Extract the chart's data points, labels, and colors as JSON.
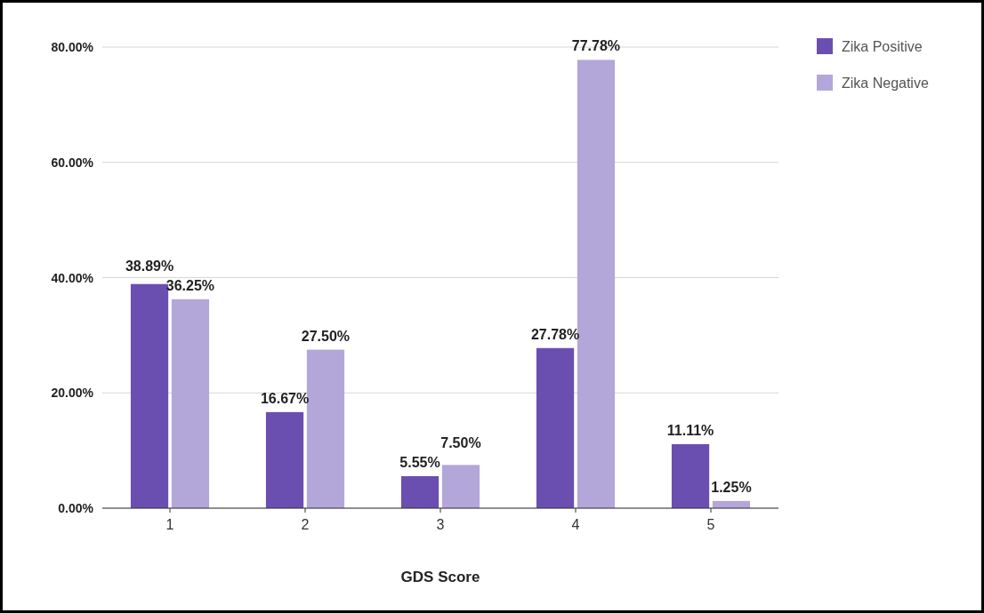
{
  "chart_data": {
    "type": "bar",
    "xlabel": "GDS Score",
    "categories": [
      "1",
      "2",
      "3",
      "4",
      "5"
    ],
    "series": [
      {
        "name": "Zika Positive",
        "color": "#6a4fb0",
        "values": [
          38.89,
          16.67,
          5.55,
          27.78,
          11.11
        ],
        "value_labels": [
          "38.89%",
          "16.67%",
          "5.55%",
          "27.78%",
          "11.11%"
        ]
      },
      {
        "name": "Zika Negative",
        "color": "#b3a7da",
        "values": [
          36.25,
          27.5,
          7.5,
          77.78,
          1.25
        ],
        "value_labels": [
          "36.25%",
          "27.50%",
          "7.50%",
          "77.78%",
          "1.25%"
        ]
      }
    ],
    "ylim": [
      0,
      80
    ],
    "yticks": [
      {
        "value": 0,
        "label": "0.00%"
      },
      {
        "value": 20,
        "label": "20.00%"
      },
      {
        "value": 40,
        "label": "40.00%"
      },
      {
        "value": 60,
        "label": "60.00%"
      },
      {
        "value": 80,
        "label": "80.00%"
      }
    ],
    "grid": "y",
    "legend": "top right"
  }
}
